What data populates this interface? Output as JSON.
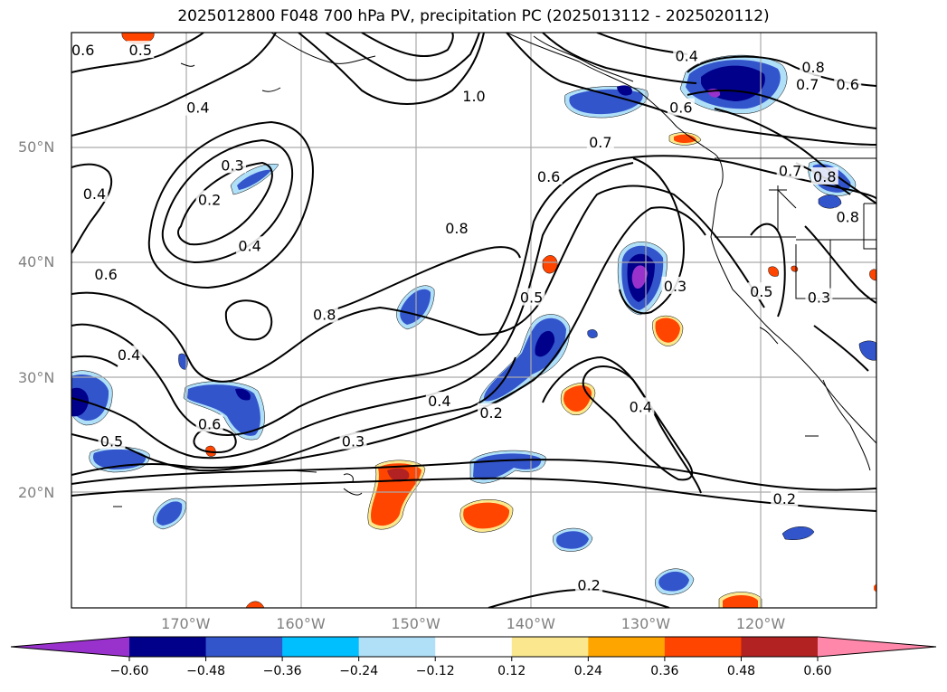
{
  "title": "2025012800 F048 700 hPa PV, precipitation PC (2025013112 - 2025020112)",
  "map": {
    "lon_range": [
      -180,
      -110
    ],
    "lat_range": [
      10,
      60
    ],
    "lat_labels": [
      {
        "lat": 50,
        "label": "50°N"
      },
      {
        "lat": 40,
        "label": "40°N"
      },
      {
        "lat": 30,
        "label": "30°N"
      },
      {
        "lat": 20,
        "label": "20°N"
      }
    ],
    "lon_labels": [
      {
        "lon": -170,
        "label": "170°W"
      },
      {
        "lon": -160,
        "label": "160°W"
      },
      {
        "lon": -150,
        "label": "150°W"
      },
      {
        "lon": -140,
        "label": "140°W"
      },
      {
        "lon": -130,
        "label": "130°W"
      },
      {
        "lon": -120,
        "label": "120°W"
      }
    ],
    "contour_labels": [
      {
        "text": "0.6",
        "lon": -179,
        "lat": 58.5
      },
      {
        "text": "0.5",
        "lon": -174,
        "lat": 58.5
      },
      {
        "text": "0.4",
        "lon": -169,
        "lat": 53.5
      },
      {
        "text": "1.0",
        "lon": -145,
        "lat": 54.5
      },
      {
        "text": "0.4",
        "lon": -126.5,
        "lat": 58
      },
      {
        "text": "0.6",
        "lon": -127,
        "lat": 53.5
      },
      {
        "text": "0.8",
        "lon": -115.5,
        "lat": 57
      },
      {
        "text": "0.7",
        "lon": -116,
        "lat": 55.5
      },
      {
        "text": "0.6",
        "lon": -112.5,
        "lat": 55.5
      },
      {
        "text": "0.7",
        "lon": -134,
        "lat": 50.5
      },
      {
        "text": "0.6",
        "lon": -138.5,
        "lat": 47.5
      },
      {
        "text": "0.7",
        "lon": -117.5,
        "lat": 48
      },
      {
        "text": "0.8",
        "lon": -114.5,
        "lat": 47.5
      },
      {
        "text": "0.8",
        "lon": -112.5,
        "lat": 44
      },
      {
        "text": "0.3",
        "lon": -166,
        "lat": 48.5
      },
      {
        "text": "0.2",
        "lon": -168,
        "lat": 45.5
      },
      {
        "text": "0.4",
        "lon": -178,
        "lat": 46
      },
      {
        "text": "0.8",
        "lon": -146.5,
        "lat": 43
      },
      {
        "text": "0.4",
        "lon": -164.5,
        "lat": 41.5
      },
      {
        "text": "0.6",
        "lon": -177,
        "lat": 39
      },
      {
        "text": "0.8",
        "lon": -158,
        "lat": 35.5
      },
      {
        "text": "0.5",
        "lon": -140,
        "lat": 37
      },
      {
        "text": "0.3",
        "lon": -127.5,
        "lat": 38
      },
      {
        "text": "0.5",
        "lon": -120,
        "lat": 37.5
      },
      {
        "text": "0.3",
        "lon": -115,
        "lat": 37
      },
      {
        "text": "0.4",
        "lon": -175,
        "lat": 32
      },
      {
        "text": "0.6",
        "lon": -168,
        "lat": 26
      },
      {
        "text": "0.5",
        "lon": -176.5,
        "lat": 24.5
      },
      {
        "text": "0.4",
        "lon": -148,
        "lat": 28
      },
      {
        "text": "0.2",
        "lon": -143.5,
        "lat": 27
      },
      {
        "text": "0.4",
        "lon": -130.5,
        "lat": 27.5
      },
      {
        "text": "0.3",
        "lon": -155.5,
        "lat": 24.5
      },
      {
        "text": "0.2",
        "lon": -118,
        "lat": 19.5
      },
      {
        "text": "0.2",
        "lon": -135,
        "lat": 12
      }
    ]
  },
  "colorbar": {
    "colors": [
      "#9932cc",
      "#00008b",
      "#3355cc",
      "#00bfff",
      "#b0e0f8",
      "#ffffff",
      "#fbe88e",
      "#ffa500",
      "#ff4500",
      "#b22222",
      "#ff88aa"
    ],
    "tick_labels": [
      "−0.60",
      "−0.48",
      "−0.36",
      "−0.24",
      "−0.12",
      "0.12",
      "0.24",
      "0.36",
      "0.48",
      "0.60"
    ]
  }
}
